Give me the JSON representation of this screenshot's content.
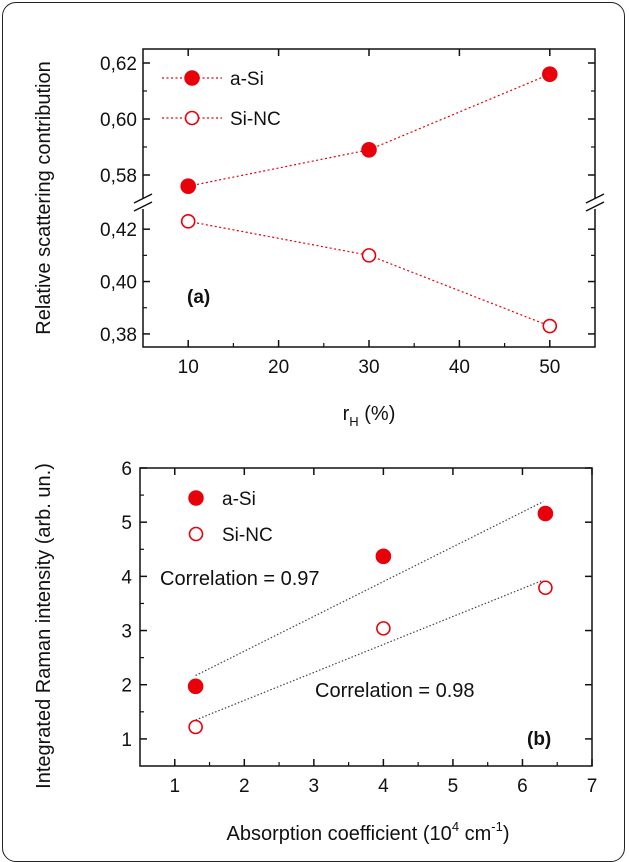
{
  "chart_data": [
    {
      "type": "scatter",
      "panel_label": "(a)",
      "xlabel": "r",
      "xlabel_sub": "H",
      "xlabel_unit": " (%)",
      "ylabel": "Relative scattering contribution",
      "xlim": [
        5,
        55
      ],
      "xticks": [
        10,
        20,
        30,
        40,
        50
      ],
      "y_break": true,
      "ylim_upper": [
        0.57,
        0.625
      ],
      "ylim_lower": [
        0.375,
        0.43
      ],
      "yticks_upper": [
        "0,58",
        "0,60",
        "0,62"
      ],
      "yticks_lower": [
        "0,38",
        "0,40",
        "0,42"
      ],
      "legend_position": "top-left",
      "series": [
        {
          "name": "a-Si",
          "marker": "filled-circle",
          "color": "#e8000b",
          "x": [
            10,
            30,
            50
          ],
          "y": [
            0.576,
            0.589,
            0.616
          ]
        },
        {
          "name": "Si-NC",
          "marker": "open-circle",
          "color": "#e8000b",
          "x": [
            10,
            30,
            50
          ],
          "y": [
            0.423,
            0.41,
            0.383
          ]
        }
      ]
    },
    {
      "type": "scatter",
      "panel_label": "(b)",
      "xlabel": "Absorption coefficient (10",
      "xlabel_sup1": "4",
      "xlabel_mid": " cm",
      "xlabel_sup2": "-1",
      "xlabel_end": ")",
      "ylabel": "Integrated Raman intensity (arb. un.)",
      "xlim": [
        0.5,
        7
      ],
      "ylim": [
        0.5,
        6
      ],
      "xticks": [
        1,
        2,
        3,
        4,
        5,
        6,
        7
      ],
      "yticks": [
        1,
        2,
        3,
        4,
        5,
        6
      ],
      "legend_position": "top-left",
      "series": [
        {
          "name": "a-Si",
          "marker": "filled-circle",
          "color": "#e8000b",
          "x": [
            1.3,
            4.0,
            6.33
          ],
          "y": [
            1.97,
            4.37,
            5.16
          ],
          "fit": [
            [
              1.3,
              2.17
            ],
            [
              6.3,
              5.38
            ]
          ]
        },
        {
          "name": "Si-NC",
          "marker": "open-circle",
          "color": "#e8000b",
          "x": [
            1.3,
            4.0,
            6.33
          ],
          "y": [
            1.22,
            3.04,
            3.79
          ],
          "fit": [
            [
              1.3,
              1.35
            ],
            [
              6.3,
              3.93
            ]
          ]
        }
      ],
      "annotations": [
        "Correlation = 0.97",
        "Correlation = 0.98"
      ]
    }
  ]
}
